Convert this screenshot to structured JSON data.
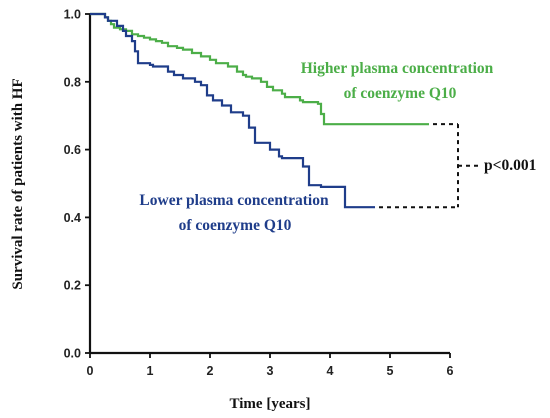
{
  "chart_data": {
    "type": "line",
    "xlabel": "Time [years]",
    "ylabel": "Survival rate of patients with HF",
    "xlim": [
      0,
      6
    ],
    "ylim": [
      0,
      1
    ],
    "x_ticks": [
      "0",
      "1",
      "2",
      "3",
      "4",
      "5",
      "6"
    ],
    "y_ticks": [
      "0.0",
      "0.2",
      "0.4",
      "0.6",
      "0.8",
      "1.0"
    ],
    "grid": false,
    "series": [
      {
        "name": "Higher plasma concentration of coenzyme Q10",
        "label_lines": [
          "Higher plasma concentration",
          "of coenzyme Q10"
        ],
        "color": "#4cae48",
        "step": true,
        "x": [
          0,
          0.25,
          0.3,
          0.35,
          0.4,
          0.5,
          0.6,
          0.7,
          0.8,
          0.9,
          1.0,
          1.1,
          1.2,
          1.3,
          1.45,
          1.55,
          1.7,
          1.85,
          2.0,
          2.1,
          2.3,
          2.45,
          2.55,
          2.6,
          2.7,
          2.85,
          2.95,
          3.05,
          3.2,
          3.25,
          3.5,
          3.55,
          3.8,
          3.85,
          3.9,
          5.65
        ],
        "y": [
          1.0,
          0.99,
          0.98,
          0.97,
          0.96,
          0.955,
          0.95,
          0.94,
          0.935,
          0.93,
          0.925,
          0.92,
          0.915,
          0.905,
          0.9,
          0.895,
          0.885,
          0.875,
          0.865,
          0.855,
          0.845,
          0.83,
          0.82,
          0.815,
          0.81,
          0.8,
          0.785,
          0.775,
          0.765,
          0.755,
          0.745,
          0.74,
          0.735,
          0.705,
          0.675,
          0.675
        ]
      },
      {
        "name": "Lower plasma concentration of coenzyme Q10",
        "label_lines": [
          "Lower plasma concentration",
          "of coenzyme Q10"
        ],
        "color": "#1f3d8a",
        "step": true,
        "x": [
          0,
          0.25,
          0.3,
          0.45,
          0.55,
          0.6,
          0.7,
          0.75,
          0.8,
          1.0,
          1.05,
          1.3,
          1.4,
          1.55,
          1.75,
          1.85,
          1.95,
          2.05,
          2.2,
          2.35,
          2.55,
          2.65,
          2.75,
          3.0,
          3.15,
          3.2,
          3.55,
          3.65,
          3.85,
          4.25,
          4.75
        ],
        "y": [
          1.0,
          0.99,
          0.98,
          0.965,
          0.95,
          0.935,
          0.92,
          0.89,
          0.855,
          0.85,
          0.845,
          0.83,
          0.82,
          0.81,
          0.8,
          0.79,
          0.76,
          0.745,
          0.73,
          0.71,
          0.7,
          0.665,
          0.62,
          0.6,
          0.58,
          0.575,
          0.55,
          0.495,
          0.49,
          0.43,
          0.43
        ]
      }
    ],
    "annotation": {
      "text": "p<0.001",
      "bracket_x": 6.0,
      "top_y": 0.675,
      "bottom_y": 0.43
    }
  },
  "colors": {
    "higher": "#4cae48",
    "lower": "#1f3d8a",
    "axis": "#111111"
  }
}
